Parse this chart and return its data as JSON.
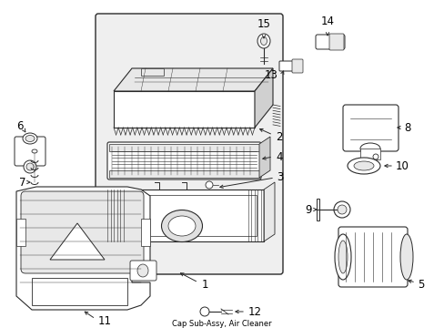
{
  "title": "Cap Sub-Assy, Air Cleaner",
  "bg_color": "#ffffff",
  "line_color": "#2a2a2a",
  "shade_color": "#e8e8e8",
  "mid_shade": "#d0d0d0",
  "figsize": [
    4.89,
    3.6
  ],
  "dpi": 100
}
